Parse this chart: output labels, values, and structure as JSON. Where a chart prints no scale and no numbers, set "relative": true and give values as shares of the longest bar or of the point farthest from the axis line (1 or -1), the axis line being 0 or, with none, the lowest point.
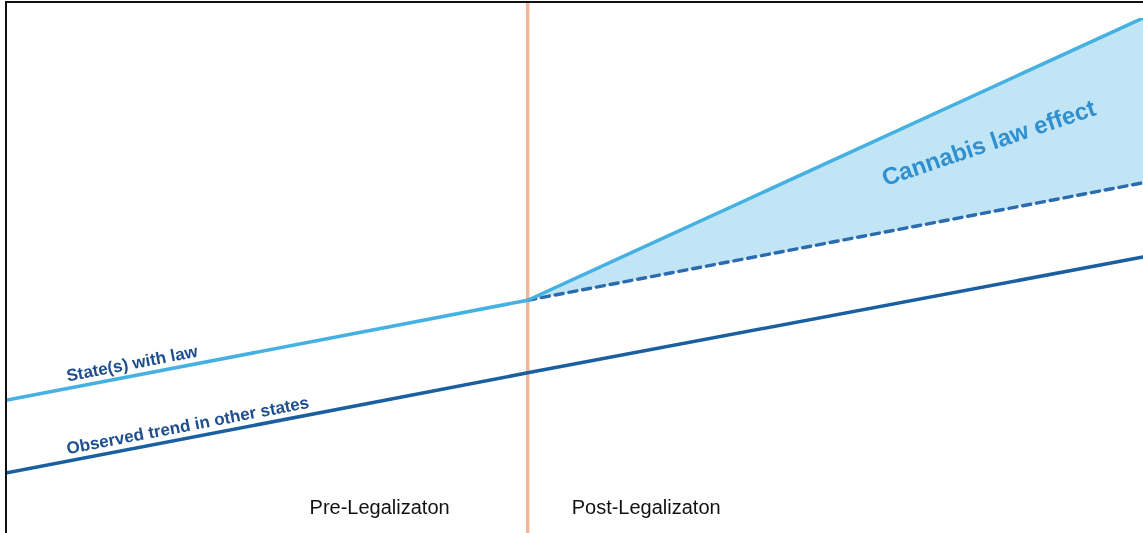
{
  "chart_data": {
    "type": "line",
    "relative": true,
    "legend": false,
    "categories": [
      null,
      null,
      null,
      null,
      null,
      null,
      null,
      null,
      null,
      null,
      null,
      null,
      null,
      null,
      null,
      null,
      null,
      null,
      null,
      null,
      null,
      null,
      null,
      null,
      null
    ],
    "series": [
      {
        "name": "State(s) with law",
        "type": "line",
        "color": "#45b0e2",
        "values": [
          0.258,
          null,
          null,
          null,
          null,
          null,
          null,
          null,
          null,
          null,
          null,
          0.452,
          null,
          null,
          null,
          null,
          null,
          null,
          null,
          null,
          null,
          null,
          null,
          null,
          1
        ],
        "lower": [
          null,
          null,
          null,
          null,
          null,
          null,
          null,
          null,
          null,
          null,
          null,
          0.452,
          null,
          null,
          null,
          null,
          null,
          null,
          null,
          null,
          null,
          null,
          null,
          null,
          0.68
        ],
        "upper": [
          null,
          null,
          null,
          null,
          null,
          null,
          null,
          null,
          null,
          null,
          null,
          0.452,
          null,
          null,
          null,
          null,
          null,
          null,
          null,
          null,
          null,
          null,
          null,
          null,
          1
        ],
        "line_style": "solid"
      },
      {
        "type": "line",
        "color": "#2b6cb0",
        "values": [
          null,
          null,
          null,
          null,
          null,
          null,
          null,
          null,
          null,
          null,
          null,
          0.452,
          null,
          null,
          null,
          null,
          null,
          null,
          null,
          null,
          null,
          null,
          null,
          null,
          0.68
        ],
        "line_style": "dashed"
      },
      {
        "name": "Observed trend in other states",
        "type": "line",
        "color": "#1a5fa0",
        "values": [
          0.117,
          null,
          null,
          null,
          null,
          null,
          null,
          null,
          null,
          null,
          null,
          0.311,
          null,
          null,
          null,
          null,
          null,
          null,
          null,
          null,
          null,
          null,
          null,
          null,
          0.536
        ],
        "line_style": "solid"
      }
    ],
    "annotations": [
      "Pre-Legalizaton",
      "Post-Legalizaton",
      "Cannabis law effect"
    ]
  }
}
